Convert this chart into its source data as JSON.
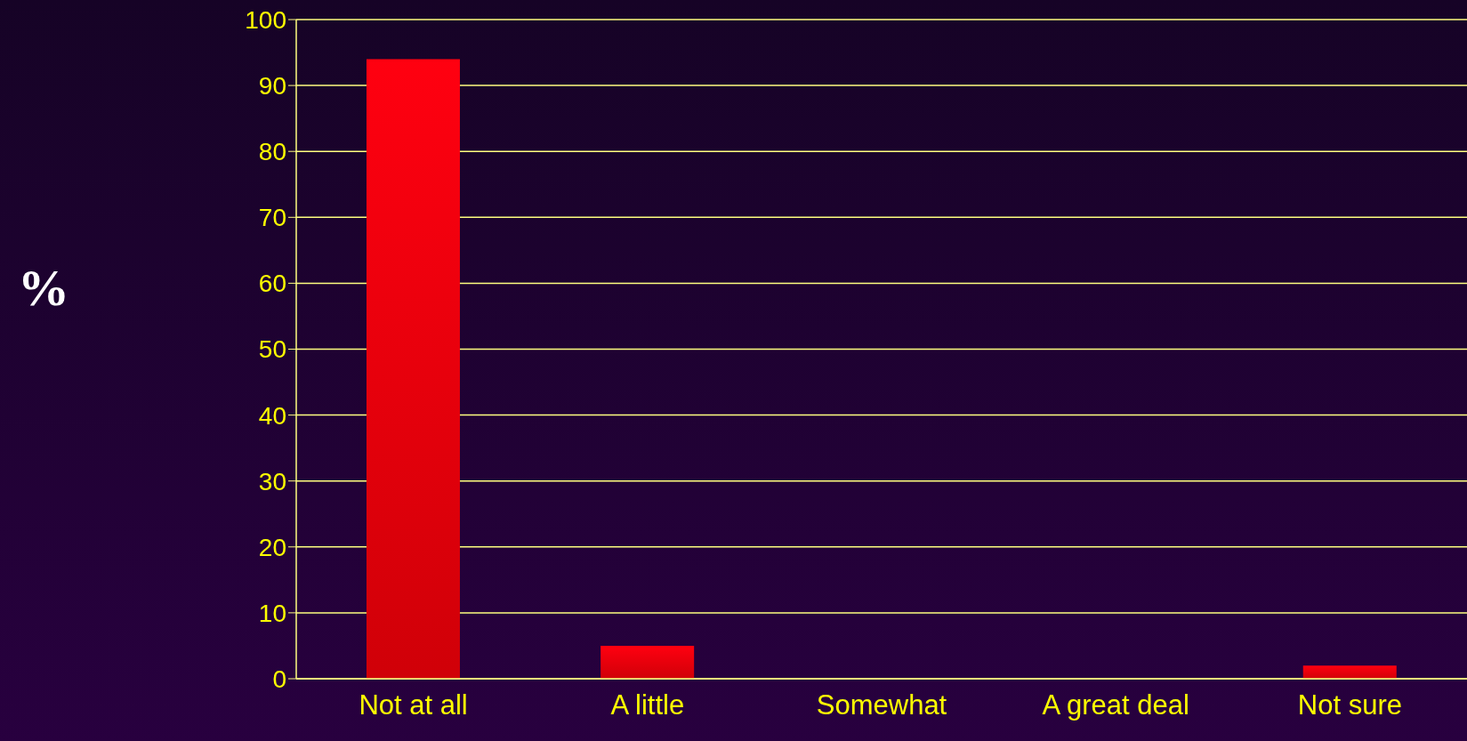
{
  "chart_data": {
    "type": "bar",
    "ylabel": "%",
    "categories": [
      "Not at all",
      "A little",
      "Somewhat",
      "A great deal",
      "Not sure"
    ],
    "values": [
      94,
      5,
      0,
      0,
      2
    ],
    "color": "#ff0010",
    "ylim": [
      0,
      100
    ],
    "yticks": [
      0,
      10,
      20,
      30,
      40,
      50,
      60,
      70,
      80,
      90,
      100
    ],
    "grid": "y"
  }
}
